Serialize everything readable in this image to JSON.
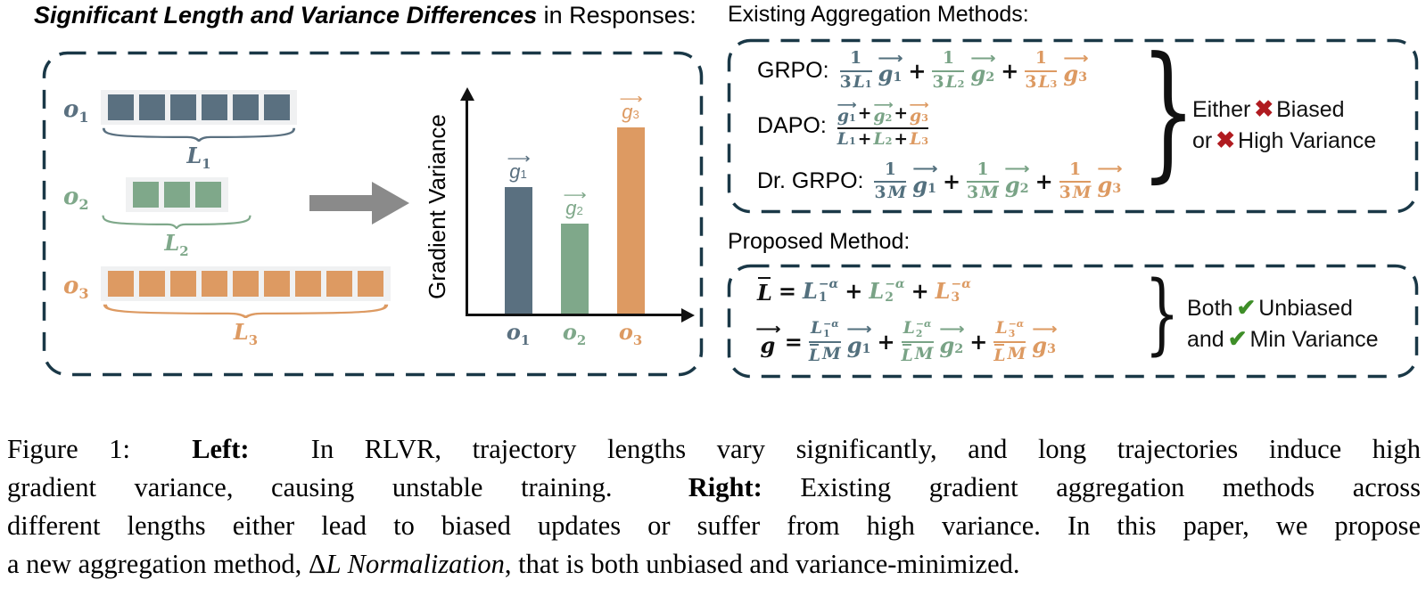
{
  "colors": {
    "slate": "#53707e",
    "green": "#79a386",
    "orange": "#dd9a62",
    "dash_border": "#1a3847",
    "arrow_gray": "#8a8a8a",
    "cross_red": "#b01b20",
    "check_green": "#3e8e28",
    "strip_bg": "#f0f1f2"
  },
  "left_panel": {
    "title": [
      {
        "t": "Significant Length and Variance Differences",
        "b": true,
        "i": true
      },
      {
        "t": " in Responses:"
      }
    ],
    "sequences": [
      {
        "label_base": "o",
        "label_sub": "1",
        "token_count": 6,
        "color": "#5a7080",
        "length_base": "L",
        "length_sub": "1"
      },
      {
        "label_base": "o",
        "label_sub": "2",
        "token_count": 3,
        "color": "#7fa88a",
        "length_base": "L",
        "length_sub": "2"
      },
      {
        "label_base": "o",
        "label_sub": "3",
        "token_count": 9,
        "color": "#dd9a62",
        "length_base": "L",
        "length_sub": "3"
      }
    ]
  },
  "chart_data": {
    "type": "bar",
    "categories": [
      "o1",
      "o2",
      "o3"
    ],
    "values": [
      0.59,
      0.42,
      0.87
    ],
    "bar_labels": [
      "g1",
      "g2",
      "g3"
    ],
    "colors": [
      "#5a7080",
      "#7fa88a",
      "#dd9a62"
    ],
    "title": "",
    "xlabel": "",
    "ylabel": "Gradient Variance",
    "ylim": [
      0,
      1
    ],
    "grid": false,
    "legend": false
  },
  "right_panel": {
    "existing_title": "Existing Aggregation Methods:",
    "methods": [
      {
        "label": "GRPO:",
        "tokens": [
          {
            "t": "f",
            "c": "#53707e",
            "num": [
              {
                "t": "t",
                "v": "1"
              }
            ],
            "den": [
              {
                "t": "t",
                "v": "3"
              },
              {
                "t": "s",
                "base": "L",
                "sub": "1",
                "i": true
              }
            ]
          },
          {
            "t": "v",
            "base": "g",
            "sub": "1",
            "c": "#53707e"
          },
          {
            "t": "t",
            "v": "+"
          },
          {
            "t": "f",
            "c": "#79a386",
            "num": [
              {
                "t": "t",
                "v": "1"
              }
            ],
            "den": [
              {
                "t": "t",
                "v": "3"
              },
              {
                "t": "s",
                "base": "L",
                "sub": "2",
                "i": true
              }
            ]
          },
          {
            "t": "v",
            "base": "g",
            "sub": "2",
            "c": "#79a386"
          },
          {
            "t": "t",
            "v": "+"
          },
          {
            "t": "f",
            "c": "#dd9a62",
            "num": [
              {
                "t": "t",
                "v": "1"
              }
            ],
            "den": [
              {
                "t": "t",
                "v": "3"
              },
              {
                "t": "s",
                "base": "L",
                "sub": "3",
                "i": true
              }
            ]
          },
          {
            "t": "v",
            "base": "g",
            "sub": "3",
            "c": "#dd9a62"
          }
        ]
      },
      {
        "label": "DAPO:",
        "tokens": [
          {
            "t": "f",
            "num": [
              {
                "t": "v",
                "base": "g",
                "sub": "1",
                "c": "#53707e"
              },
              {
                "t": "t",
                "v": "+"
              },
              {
                "t": "v",
                "base": "g",
                "sub": "2",
                "c": "#79a386"
              },
              {
                "t": "t",
                "v": "+"
              },
              {
                "t": "v",
                "base": "g",
                "sub": "3",
                "c": "#dd9a62"
              }
            ],
            "den": [
              {
                "t": "s",
                "base": "L",
                "sub": "1",
                "i": true,
                "c": "#53707e"
              },
              {
                "t": "t",
                "v": "+"
              },
              {
                "t": "s",
                "base": "L",
                "sub": "2",
                "i": true,
                "c": "#79a386"
              },
              {
                "t": "t",
                "v": "+"
              },
              {
                "t": "s",
                "base": "L",
                "sub": "3",
                "i": true,
                "c": "#dd9a62"
              }
            ]
          }
        ]
      },
      {
        "label": "Dr. GRPO:",
        "tokens": [
          {
            "t": "f",
            "c": "#53707e",
            "num": [
              {
                "t": "t",
                "v": "1"
              }
            ],
            "den": [
              {
                "t": "t",
                "v": "3"
              },
              {
                "t": "t",
                "v": "M",
                "i": true
              }
            ]
          },
          {
            "t": "v",
            "base": "g",
            "sub": "1",
            "c": "#53707e"
          },
          {
            "t": "t",
            "v": "+"
          },
          {
            "t": "f",
            "c": "#79a386",
            "num": [
              {
                "t": "t",
                "v": "1"
              }
            ],
            "den": [
              {
                "t": "t",
                "v": "3"
              },
              {
                "t": "t",
                "v": "M",
                "i": true
              }
            ]
          },
          {
            "t": "v",
            "base": "g",
            "sub": "2",
            "c": "#79a386"
          },
          {
            "t": "t",
            "v": "+"
          },
          {
            "t": "f",
            "c": "#dd9a62",
            "num": [
              {
                "t": "t",
                "v": "1"
              }
            ],
            "den": [
              {
                "t": "t",
                "v": "3"
              },
              {
                "t": "t",
                "v": "M",
                "i": true
              }
            ]
          },
          {
            "t": "v",
            "base": "g",
            "sub": "3",
            "c": "#dd9a62"
          }
        ]
      }
    ],
    "existing_annotation": [
      [
        {
          "t": "Either"
        },
        {
          "t": "✖",
          "c": "#b01b20",
          "n": "cross-icon"
        },
        {
          "t": "Biased"
        }
      ],
      [
        {
          "t": "or"
        },
        {
          "t": "✖",
          "c": "#b01b20",
          "n": "cross-icon"
        },
        {
          "t": "High Variance"
        }
      ]
    ],
    "proposed_title": "Proposed Method:",
    "proposed_rows": [
      {
        "tokens": [
          {
            "t": "b",
            "v": "L",
            "i": true
          },
          {
            "t": "t",
            "v": "="
          },
          {
            "t": "ss",
            "base": "L",
            "sub": "1",
            "sup": "−α",
            "c": "#53707e"
          },
          {
            "t": "t",
            "v": "+"
          },
          {
            "t": "ss",
            "base": "L",
            "sub": "2",
            "sup": "−α",
            "c": "#79a386"
          },
          {
            "t": "t",
            "v": "+"
          },
          {
            "t": "ss",
            "base": "L",
            "sub": "3",
            "sup": "−α",
            "c": "#dd9a62"
          }
        ]
      },
      {
        "tokens": [
          {
            "t": "v",
            "base": "g"
          },
          {
            "t": "t",
            "v": "="
          },
          {
            "t": "f",
            "c": "#53707e",
            "num": [
              {
                "t": "ss",
                "base": "L",
                "sub": "1",
                "sup": "−α"
              }
            ],
            "den": [
              {
                "t": "b",
                "v": "L",
                "i": true
              },
              {
                "t": "t",
                "v": "M",
                "i": true
              }
            ]
          },
          {
            "t": "v",
            "base": "g",
            "sub": "1",
            "c": "#53707e"
          },
          {
            "t": "t",
            "v": "+"
          },
          {
            "t": "f",
            "c": "#79a386",
            "num": [
              {
                "t": "ss",
                "base": "L",
                "sub": "2",
                "sup": "−α"
              }
            ],
            "den": [
              {
                "t": "b",
                "v": "L",
                "i": true
              },
              {
                "t": "t",
                "v": "M",
                "i": true
              }
            ]
          },
          {
            "t": "v",
            "base": "g",
            "sub": "2",
            "c": "#79a386"
          },
          {
            "t": "t",
            "v": "+"
          },
          {
            "t": "f",
            "c": "#dd9a62",
            "num": [
              {
                "t": "ss",
                "base": "L",
                "sub": "3",
                "sup": "−α"
              }
            ],
            "den": [
              {
                "t": "b",
                "v": "L",
                "i": true
              },
              {
                "t": "t",
                "v": "M",
                "i": true
              }
            ]
          },
          {
            "t": "v",
            "base": "g",
            "sub": "3",
            "c": "#dd9a62"
          }
        ]
      }
    ],
    "proposed_annotation": [
      [
        {
          "t": "Both"
        },
        {
          "t": "✔",
          "c": "#3e8e28",
          "n": "check-icon"
        },
        {
          "t": "Unbiased"
        }
      ],
      [
        {
          "t": "and"
        },
        {
          "t": "✔",
          "c": "#3e8e28",
          "n": "check-icon"
        },
        {
          "t": "Min Variance"
        }
      ]
    ]
  },
  "caption": {
    "lines": [
      {
        "justify": true,
        "segments": [
          {
            "t": "Figure 1:  "
          },
          {
            "t": "Left:",
            "b": true
          },
          {
            "t": "  In RLVR, trajectory lengths vary significantly, and long trajectories induce high"
          }
        ]
      },
      {
        "justify": true,
        "segments": [
          {
            "t": "gradient variance, causing unstable training.  "
          },
          {
            "t": "Right:",
            "b": true
          },
          {
            "t": " Existing gradient aggregation methods across"
          }
        ]
      },
      {
        "justify": true,
        "segments": [
          {
            "t": "different lengths either lead to biased updates or suffer from high variance. In this paper, we propose"
          }
        ]
      },
      {
        "justify": false,
        "segments": [
          {
            "t": "a new aggregation method, "
          },
          {
            "t": "Δ"
          },
          {
            "t": "L Normalization",
            "i": true
          },
          {
            "t": ", that is both unbiased and variance-minimized."
          }
        ]
      }
    ]
  }
}
